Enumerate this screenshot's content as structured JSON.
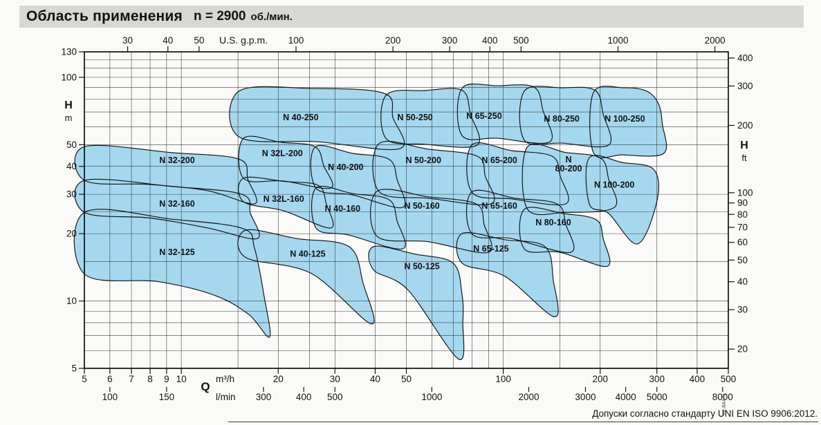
{
  "header": {
    "title": "Область применения",
    "speed": "n = 2900",
    "speed_unit": "об./мин."
  },
  "footer": {
    "tolerance_note": "Допуски согласно стандарту UNI EN ISO 9906:2012.",
    "drawing_code": "72.844.N"
  },
  "chart_data": {
    "type": "area",
    "title": "Область применения n = 2900 об./мин.",
    "axes": {
      "top": {
        "label": "U.S. g.p.m.",
        "ticks": [
          30,
          40,
          50,
          100,
          200,
          300,
          400,
          500,
          1000,
          2000
        ]
      },
      "left": {
        "label": "H",
        "unit": "m",
        "ticks": [
          130,
          100,
          50,
          40,
          30,
          20,
          10,
          5
        ],
        "range": [
          5,
          130
        ]
      },
      "right": {
        "label": "H",
        "unit": "ft",
        "ticks": [
          400,
          300,
          200,
          100,
          90,
          80,
          70,
          60,
          50,
          40,
          30,
          20
        ]
      },
      "q_symbol": "Q",
      "bottom_m3h": {
        "label": "m³/h",
        "ticks": [
          5,
          6,
          7,
          8,
          9,
          10,
          20,
          30,
          40,
          50,
          100,
          200,
          300,
          400,
          500
        ],
        "range": [
          5,
          500
        ]
      },
      "bottom_lmin": {
        "label": "l/min",
        "ticks": [
          100,
          150,
          300,
          400,
          500,
          1000,
          2000,
          3000,
          4000,
          5000,
          8000
        ]
      },
      "grid_q": [
        5,
        6,
        7,
        8,
        9,
        10,
        15,
        20,
        25,
        30,
        40,
        50,
        60,
        70,
        80,
        90,
        100,
        150,
        200,
        300,
        400,
        500
      ],
      "grid_h": [
        5,
        6,
        7,
        8,
        9,
        10,
        15,
        20,
        25,
        30,
        40,
        50,
        60,
        70,
        80,
        90,
        100,
        110,
        120,
        130
      ]
    },
    "colors": {
      "region_fill": "#a5d8ee",
      "region_stroke": "#101010",
      "grid": "#2a2a2a",
      "header_bg": "#d7d7d4"
    },
    "regions": [
      {
        "name": "N 32-125",
        "label": [
          "N 32-125"
        ],
        "label_at": [
          9.7,
          16.5
        ],
        "points": [
          [
            5,
            24.9
          ],
          [
            9.4,
            23.2
          ],
          [
            15.5,
            21.1
          ],
          [
            16.9,
            17.1
          ],
          [
            18.1,
            10.4
          ],
          [
            18.8,
            6.9
          ],
          [
            16.2,
            8.7
          ],
          [
            12.7,
            10.6
          ],
          [
            8.5,
            12.2
          ],
          [
            5,
            13.2
          ]
        ]
      },
      {
        "name": "N 32-160",
        "label": [
          "N 32-160"
        ],
        "label_at": [
          9.7,
          27.2
        ],
        "points": [
          [
            5,
            34.6
          ],
          [
            9.4,
            32.5
          ],
          [
            15.4,
            30
          ],
          [
            16.4,
            24.6
          ],
          [
            17.2,
            19
          ],
          [
            12.1,
            21.2
          ],
          [
            8,
            23.5
          ],
          [
            5,
            24.9
          ]
        ]
      },
      {
        "name": "N 32-200",
        "label": [
          "N 32-200"
        ],
        "label_at": [
          9.7,
          42.5
        ],
        "points": [
          [
            5,
            49
          ],
          [
            9.4,
            46
          ],
          [
            15.1,
            43.1
          ],
          [
            16.1,
            34.9
          ],
          [
            16.9,
            27.2
          ],
          [
            12.1,
            31.1
          ],
          [
            8,
            33.2
          ],
          [
            5,
            34.6
          ]
        ]
      },
      {
        "name": "N 32L-160",
        "label": [
          "N 32L-160"
        ],
        "label_at": [
          20.8,
          28.6
        ],
        "points": [
          [
            15.6,
            35.4
          ],
          [
            21,
            34.2
          ],
          [
            26.6,
            32.9
          ],
          [
            28.2,
            27.2
          ],
          [
            29.1,
            21.2
          ],
          [
            20.8,
            25.3
          ],
          [
            15.6,
            27.8
          ]
        ]
      },
      {
        "name": "N 32L-200",
        "label": [
          "N 32L-200"
        ],
        "label_at": [
          20.6,
          45.7
        ],
        "points": [
          [
            15.6,
            53.4
          ],
          [
            20.5,
            51.2
          ],
          [
            26,
            49
          ],
          [
            27.7,
            40.2
          ],
          [
            29.1,
            32
          ],
          [
            20.8,
            34.4
          ],
          [
            15.6,
            35.4
          ]
        ]
      },
      {
        "name": "N 40-125",
        "label": [
          "N 40-125"
        ],
        "label_at": [
          24.7,
          16.2
        ],
        "points": [
          [
            15.8,
            20.7
          ],
          [
            22.9,
            19
          ],
          [
            33.2,
            17.5
          ],
          [
            36.7,
            12
          ],
          [
            38.9,
            7.9
          ],
          [
            25.3,
            13.3
          ],
          [
            15.8,
            15.7
          ]
        ]
      },
      {
        "name": "N 40-160",
        "label": [
          "N 40-160"
        ],
        "label_at": [
          31.7,
          25.9
        ],
        "points": [
          [
            26.2,
            32
          ],
          [
            34.1,
            30.2
          ],
          [
            44.1,
            28.4
          ],
          [
            46.8,
            22.8
          ],
          [
            48.7,
            17.1
          ],
          [
            33.2,
            19.7
          ],
          [
            26.2,
            21.2
          ]
        ]
      },
      {
        "name": "N 40-200",
        "label": [
          "N 40-200"
        ],
        "label_at": [
          32.4,
          39.6
        ],
        "points": [
          [
            26,
            48.7
          ],
          [
            34.1,
            45.7
          ],
          [
            44.1,
            43.1
          ],
          [
            46.8,
            34.9
          ],
          [
            48.7,
            26.2
          ],
          [
            34.1,
            29.8
          ],
          [
            26.2,
            32
          ]
        ]
      },
      {
        "name": "N 40-250",
        "label": [
          "N 40-250"
        ],
        "label_at": [
          23.5,
          66.2
        ],
        "points": [
          [
            15.1,
            86.7
          ],
          [
            25.3,
            89.2
          ],
          [
            42.6,
            84.9
          ],
          [
            45.4,
            66.2
          ],
          [
            47.7,
            48
          ],
          [
            26.6,
            51.5
          ],
          [
            15.1,
            54.2
          ]
        ]
      },
      {
        "name": "N 50-125",
        "label": [
          "N 50-125"
        ],
        "label_at": [
          55.9,
          14.3
        ],
        "points": [
          [
            39.5,
            17.5
          ],
          [
            53.2,
            16.2
          ],
          [
            69.8,
            14.8
          ],
          [
            74.4,
            10.8
          ],
          [
            74.9,
            8.1
          ],
          [
            72.6,
            5.5
          ],
          [
            50.6,
            11.2
          ],
          [
            39.5,
            13.8
          ]
        ]
      },
      {
        "name": "N 50-160",
        "label": [
          "N 50-160"
        ],
        "label_at": [
          55.9,
          26.6
        ],
        "points": [
          [
            40.5,
            30.9
          ],
          [
            58.7,
            29.2
          ],
          [
            82.2,
            27.2
          ],
          [
            87.2,
            22
          ],
          [
            89.9,
            16.5
          ],
          [
            58.7,
            18.4
          ],
          [
            40.5,
            19.5
          ]
        ]
      },
      {
        "name": "N 50-200",
        "label": [
          "N 50-200"
        ],
        "label_at": [
          56.5,
          42.5
        ],
        "points": [
          [
            41.1,
            50.5
          ],
          [
            58.7,
            47.7
          ],
          [
            83,
            44.4
          ],
          [
            87.9,
            36.1
          ],
          [
            91.7,
            27.2
          ],
          [
            58.7,
            28.8
          ],
          [
            41.1,
            30.9
          ]
        ]
      },
      {
        "name": "N 50-250",
        "label": [
          "N 50-250"
        ],
        "label_at": [
          53.2,
          66.2
        ],
        "points": [
          [
            43.2,
            83
          ],
          [
            57.3,
            87.3
          ],
          [
            74.4,
            87.6
          ],
          [
            79.1,
            68.5
          ],
          [
            83,
            49.8
          ],
          [
            57.3,
            50.2
          ],
          [
            43.2,
            53.4
          ]
        ]
      },
      {
        "name": "N 65-125",
        "label": [
          "N 65-125"
        ],
        "label_at": [
          91.6,
          17.1
        ],
        "points": [
          [
            74.4,
            20
          ],
          [
            101.1,
            18.8
          ],
          [
            134.8,
            17.5
          ],
          [
            143,
            12.4
          ],
          [
            144.4,
            8.5
          ],
          [
            101.1,
            12.9
          ],
          [
            74.4,
            14.8
          ]
        ]
      },
      {
        "name": "N 65-160",
        "label": [
          "N 65-160"
        ],
        "label_at": [
          97.3,
          26.6
        ],
        "points": [
          [
            79.8,
            30.7
          ],
          [
            108.9,
            28.8
          ],
          [
            146.6,
            27.2
          ],
          [
            156.4,
            22
          ],
          [
            161.9,
            16.5
          ],
          [
            106.3,
            19
          ],
          [
            79.8,
            20
          ]
        ]
      },
      {
        "name": "N 65-200",
        "label": [
          "N 65-200"
        ],
        "label_at": [
          97.3,
          42.5
        ],
        "points": [
          [
            79.8,
            49.8
          ],
          [
            106.3,
            47
          ],
          [
            141.7,
            44.4
          ],
          [
            150.3,
            36.1
          ],
          [
            156.4,
            27.2
          ],
          [
            106.3,
            28.6
          ],
          [
            79.8,
            30.7
          ]
        ]
      },
      {
        "name": "N 65-250",
        "label": [
          "N 65-250"
        ],
        "label_at": [
          87.2,
          67.1
        ],
        "points": [
          [
            74.4,
            89.2
          ],
          [
            96.3,
            91.7
          ],
          [
            124.6,
            90.4
          ],
          [
            132.8,
            71
          ],
          [
            139.5,
            51.5
          ],
          [
            96.3,
            53.4
          ],
          [
            74.4,
            55
          ]
        ]
      },
      {
        "name": "N 80-160",
        "label": [
          "N 80-160"
        ],
        "label_at": [
          143,
          22.4
        ],
        "points": [
          [
            116.2,
            25.7
          ],
          [
            154.1,
            24.6
          ],
          [
            194.4,
            23.1
          ],
          [
            204.3,
            19
          ],
          [
            210.5,
            14.3
          ],
          [
            150.3,
            16.5
          ],
          [
            116.2,
            17.1
          ]
        ]
      },
      {
        "name": "N 80-200",
        "label": [
          "N",
          "80-200"
        ],
        "label_at": [
          159.5,
          41
        ],
        "points": [
          [
            118.6,
            48.7
          ],
          [
            156.4,
            46.1
          ],
          [
            200.3,
            43.6
          ],
          [
            212.6,
            34.9
          ],
          [
            221.2,
            26.2
          ],
          [
            156.4,
            24.9
          ],
          [
            118.6,
            25.9
          ]
        ]
      },
      {
        "name": "N 80-250",
        "label": [
          "N 80-250"
        ],
        "label_at": [
          151.9,
          65.3
        ],
        "points": [
          [
            116.2,
            86.7
          ],
          [
            151.9,
            89.8
          ],
          [
            192.5,
            87.6
          ],
          [
            204.3,
            68.5
          ],
          [
            212.6,
            49.8
          ],
          [
            151.9,
            50.8
          ],
          [
            116.2,
            52.4
          ]
        ]
      },
      {
        "name": "N 100-200",
        "label": [
          "N 100-200"
        ],
        "label_at": [
          221.2,
          33
        ],
        "points": [
          [
            185,
            43.7
          ],
          [
            234.6,
            41.6
          ],
          [
            293.1,
            38.8
          ],
          [
            300.5,
            28.2
          ],
          [
            261.6,
            18
          ],
          [
            212.6,
            24.6
          ],
          [
            185,
            27.2
          ]
        ]
      },
      {
        "name": "N 100-250",
        "label": [
          "N 100-250"
        ],
        "label_at": [
          238.5,
          65.3
        ],
        "points": [
          [
            190.6,
            85.5
          ],
          [
            236.9,
            89.8
          ],
          [
            279,
            86.7
          ],
          [
            303.4,
            76.2
          ],
          [
            312.1,
            61.6
          ],
          [
            315,
            45.7
          ],
          [
            234.6,
            45
          ],
          [
            190.6,
            46.1
          ]
        ]
      }
    ]
  }
}
